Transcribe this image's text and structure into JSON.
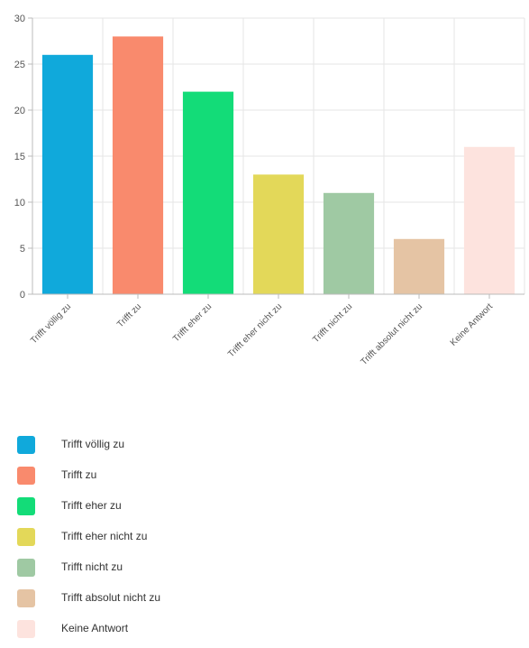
{
  "chart_data": {
    "type": "bar",
    "categories": [
      "Trifft völlig zu",
      "Trifft zu",
      "Trifft eher zu",
      "Trifft eher nicht zu",
      "Trifft nicht zu",
      "Trifft absolut nicht zu",
      "Keine Antwort"
    ],
    "values": [
      26,
      28,
      22,
      13,
      11,
      6,
      16
    ],
    "colors": [
      "#10A9DB",
      "#F98A6D",
      "#13DC78",
      "#E3D859",
      "#9FC9A3",
      "#E5C4A4",
      "#FDE3DE"
    ],
    "ylim": [
      0,
      30
    ],
    "yticks": [
      0,
      5,
      10,
      15,
      20,
      25,
      30
    ],
    "grid": true,
    "legend_position": "bottom-left"
  }
}
